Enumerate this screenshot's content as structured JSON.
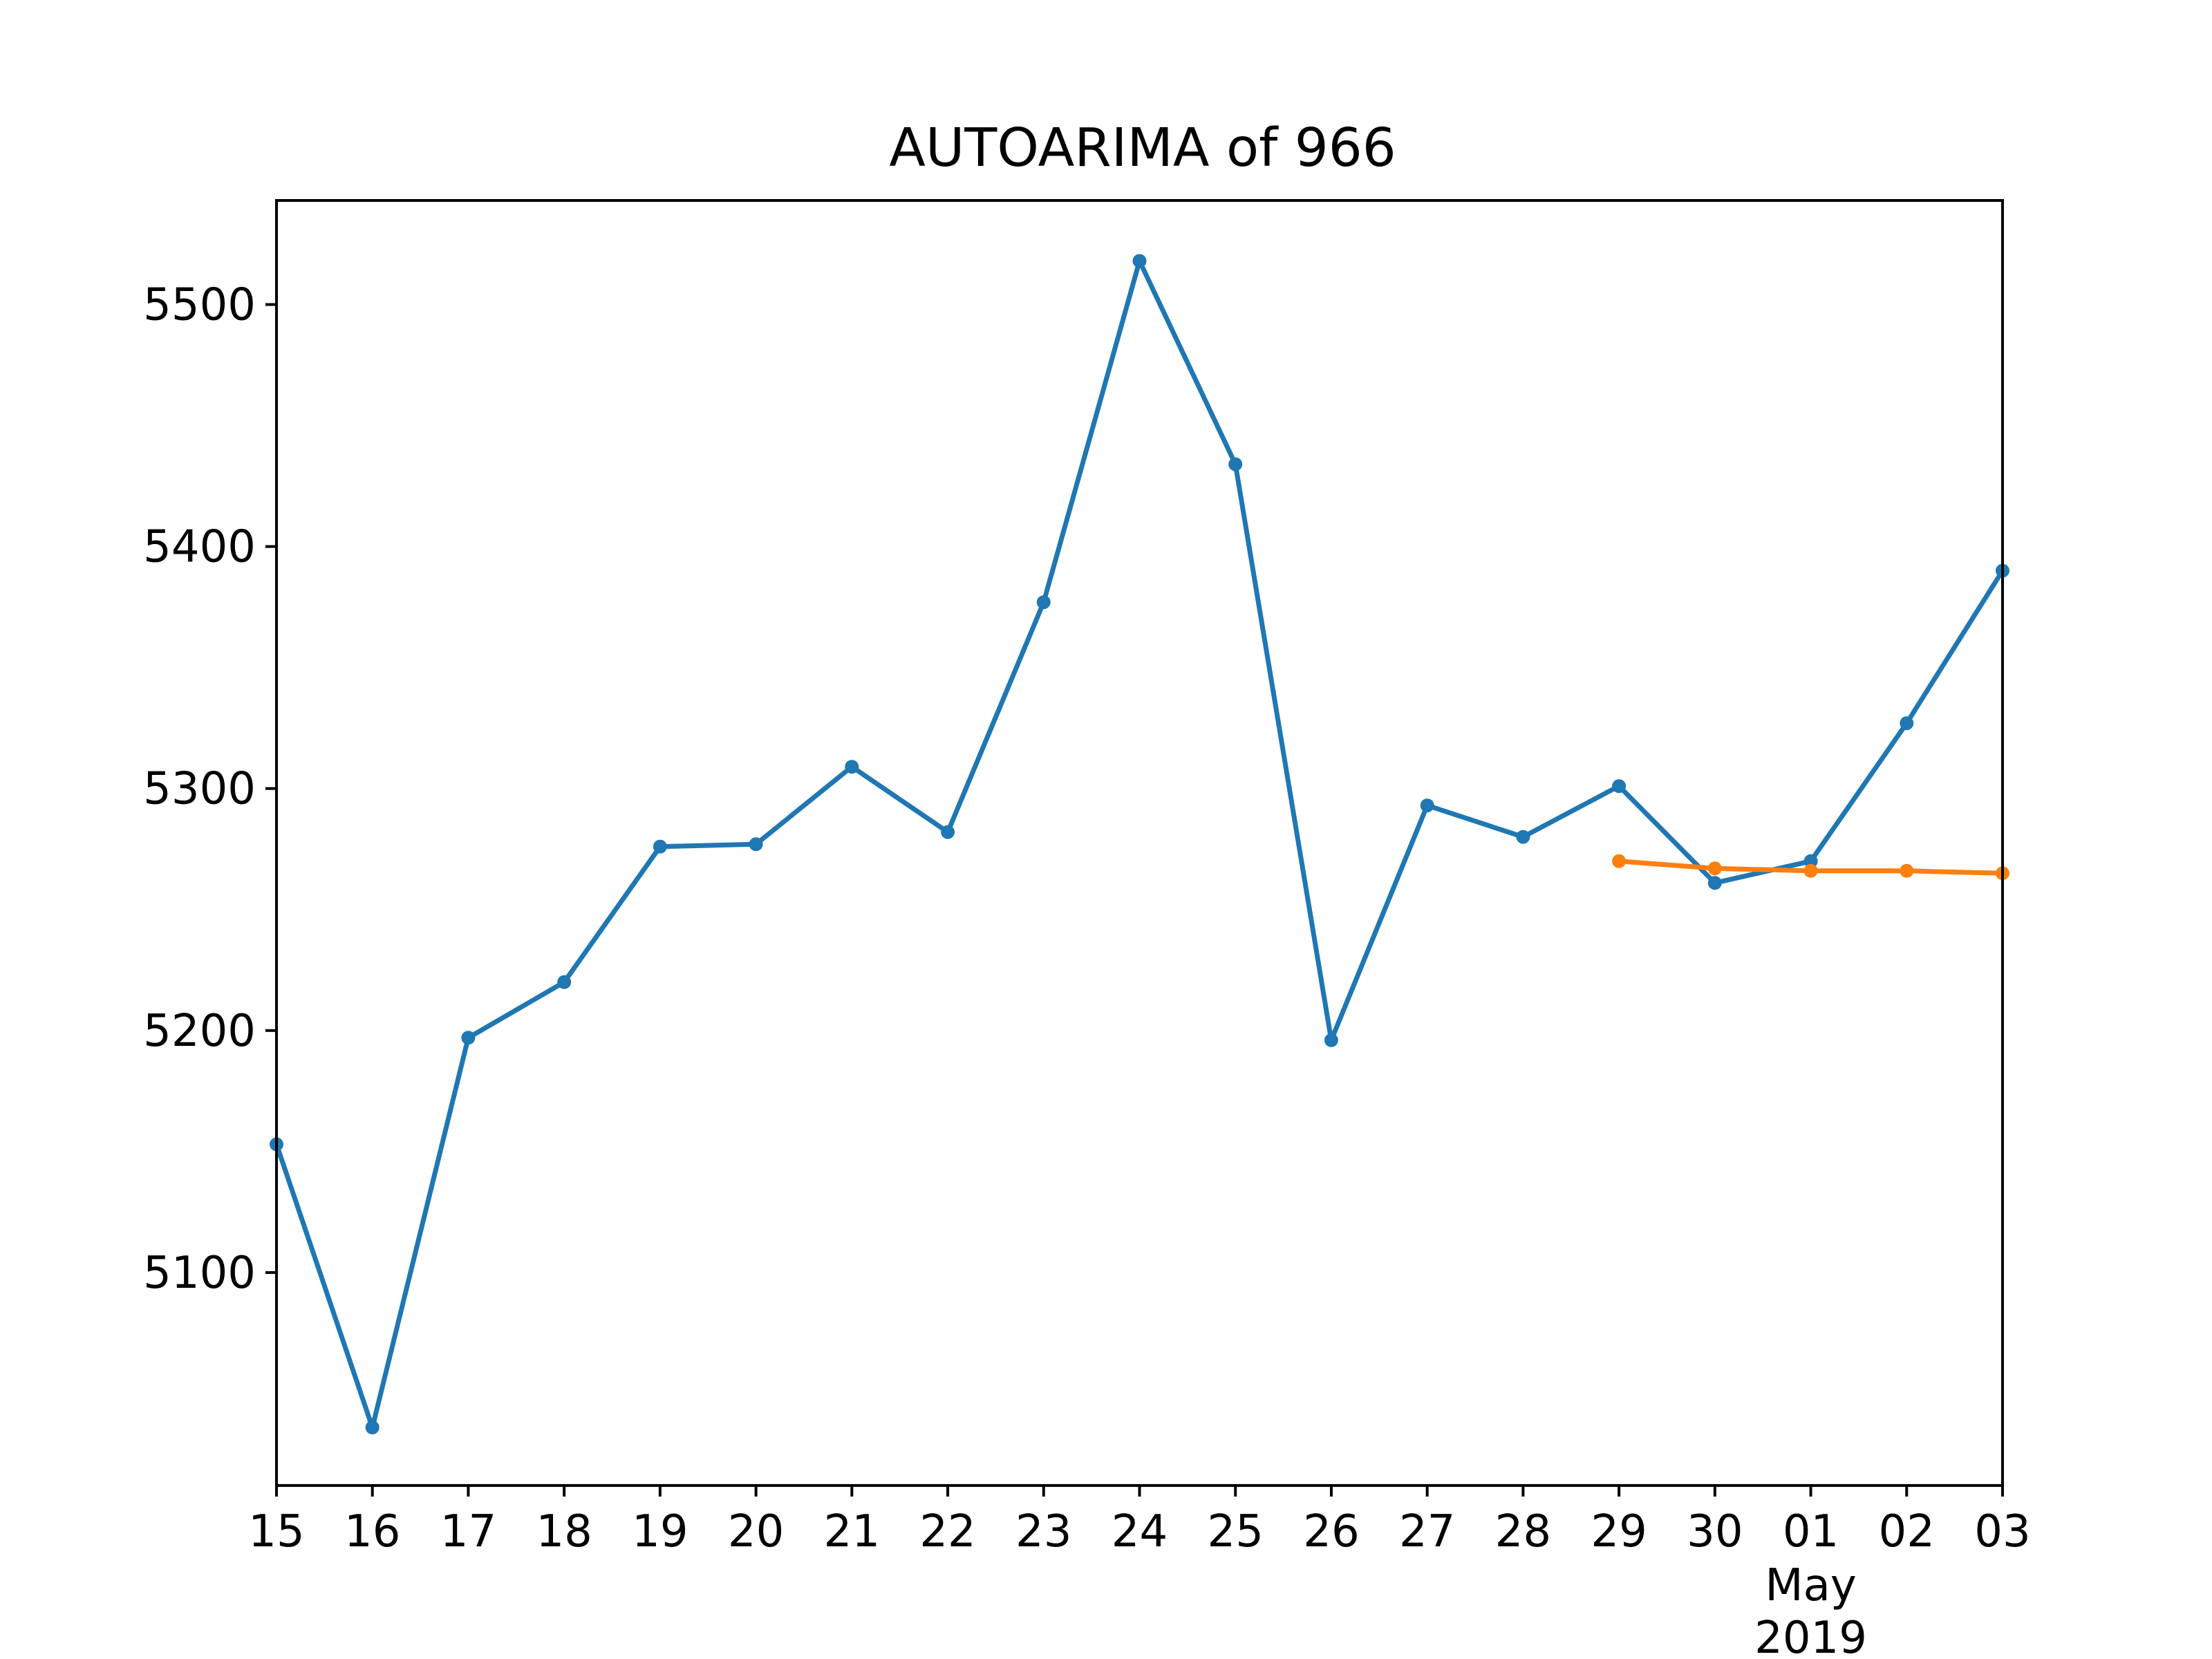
{
  "chart_data": {
    "type": "line",
    "title": "AUTOARIMA of 966",
    "xlabel": "",
    "ylabel": "",
    "x": [
      "04-15",
      "04-16",
      "04-17",
      "04-18",
      "04-19",
      "04-20",
      "04-21",
      "04-22",
      "04-23",
      "04-24",
      "04-25",
      "04-26",
      "04-27",
      "04-28",
      "04-29",
      "04-30",
      "05-01",
      "05-02",
      "05-03"
    ],
    "x_tick_labels": [
      "15",
      "16",
      "17",
      "18",
      "19",
      "20",
      "21",
      "22",
      "23",
      "24",
      "25",
      "26",
      "27",
      "28",
      "29",
      "30",
      "01",
      "02",
      "03"
    ],
    "x_tick_sublabel": {
      "tick": "01",
      "month": "May",
      "year": "2019"
    },
    "xlim": [
      "04-15",
      "05-03"
    ],
    "ylim": [
      5012,
      5543
    ],
    "y_ticks": [
      5100,
      5200,
      5300,
      5400,
      5500
    ],
    "grid": false,
    "series": [
      {
        "color": "#1f77b4",
        "x": [
          "04-15",
          "04-16",
          "04-17",
          "04-18",
          "04-19",
          "04-20",
          "04-21",
          "04-22",
          "04-23",
          "04-24",
          "04-25",
          "04-26",
          "04-27",
          "04-28",
          "04-29",
          "04-30",
          "05-01",
          "05-02",
          "05-03"
        ],
        "values": [
          5153,
          5036,
          5197,
          5220,
          5276,
          5277,
          5309,
          5282,
          5377,
          5518,
          5434,
          5196,
          5293,
          5280,
          5301,
          5261,
          5270,
          5327,
          5390
        ]
      },
      {
        "color": "#ff7f0e",
        "x": [
          "04-29",
          "04-30",
          "05-01",
          "05-02",
          "05-03"
        ],
        "values": [
          5270,
          5267,
          5266,
          5266,
          5265
        ]
      }
    ]
  }
}
